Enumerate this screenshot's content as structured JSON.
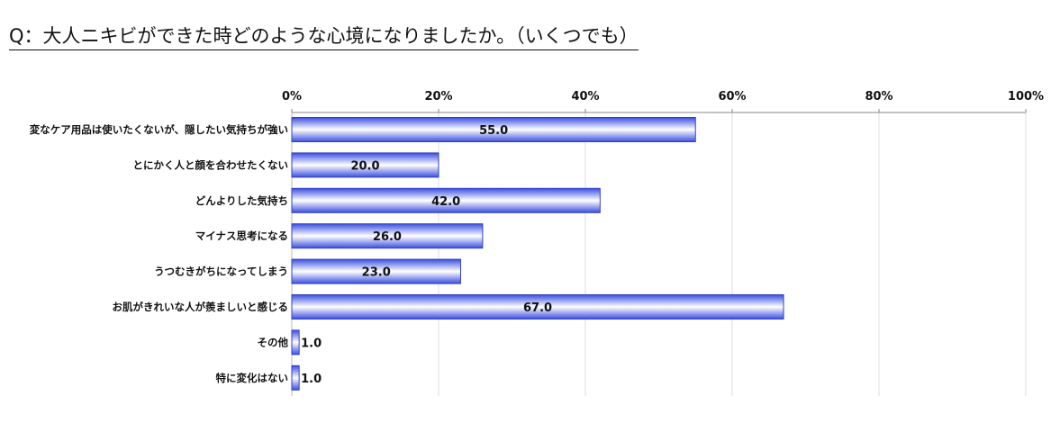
{
  "title": "Q：大人ニキビができた時どのような心境になりましたか。（いくつでも）",
  "chart_data": {
    "type": "bar",
    "orientation": "horizontal",
    "categories": [
      "変なケア用品は使いたくないが、隠したい気持ちが強い",
      "とにかく人と顔を合わせたくない",
      "どんよりした気持ち",
      "マイナス思考になる",
      "うつむきがちになってしまう",
      "お肌がきれいな人が羨ましいと感じる",
      "その他",
      "特に変化はない"
    ],
    "values": [
      55.0,
      20.0,
      42.0,
      26.0,
      23.0,
      67.0,
      1.0,
      1.0
    ],
    "value_labels": [
      "55.0",
      "20.0",
      "42.0",
      "26.0",
      "23.0",
      "67.0",
      "1.0",
      "1.0"
    ],
    "xlim": [
      0,
      100
    ],
    "x_ticks": [
      "0%",
      "20%",
      "40%",
      "60%",
      "80%",
      "100%"
    ],
    "x_axis_position": "top",
    "grid": true,
    "legend": "none",
    "bar_color": "#3b4fe0",
    "bar_highlight": "#ffffff"
  }
}
